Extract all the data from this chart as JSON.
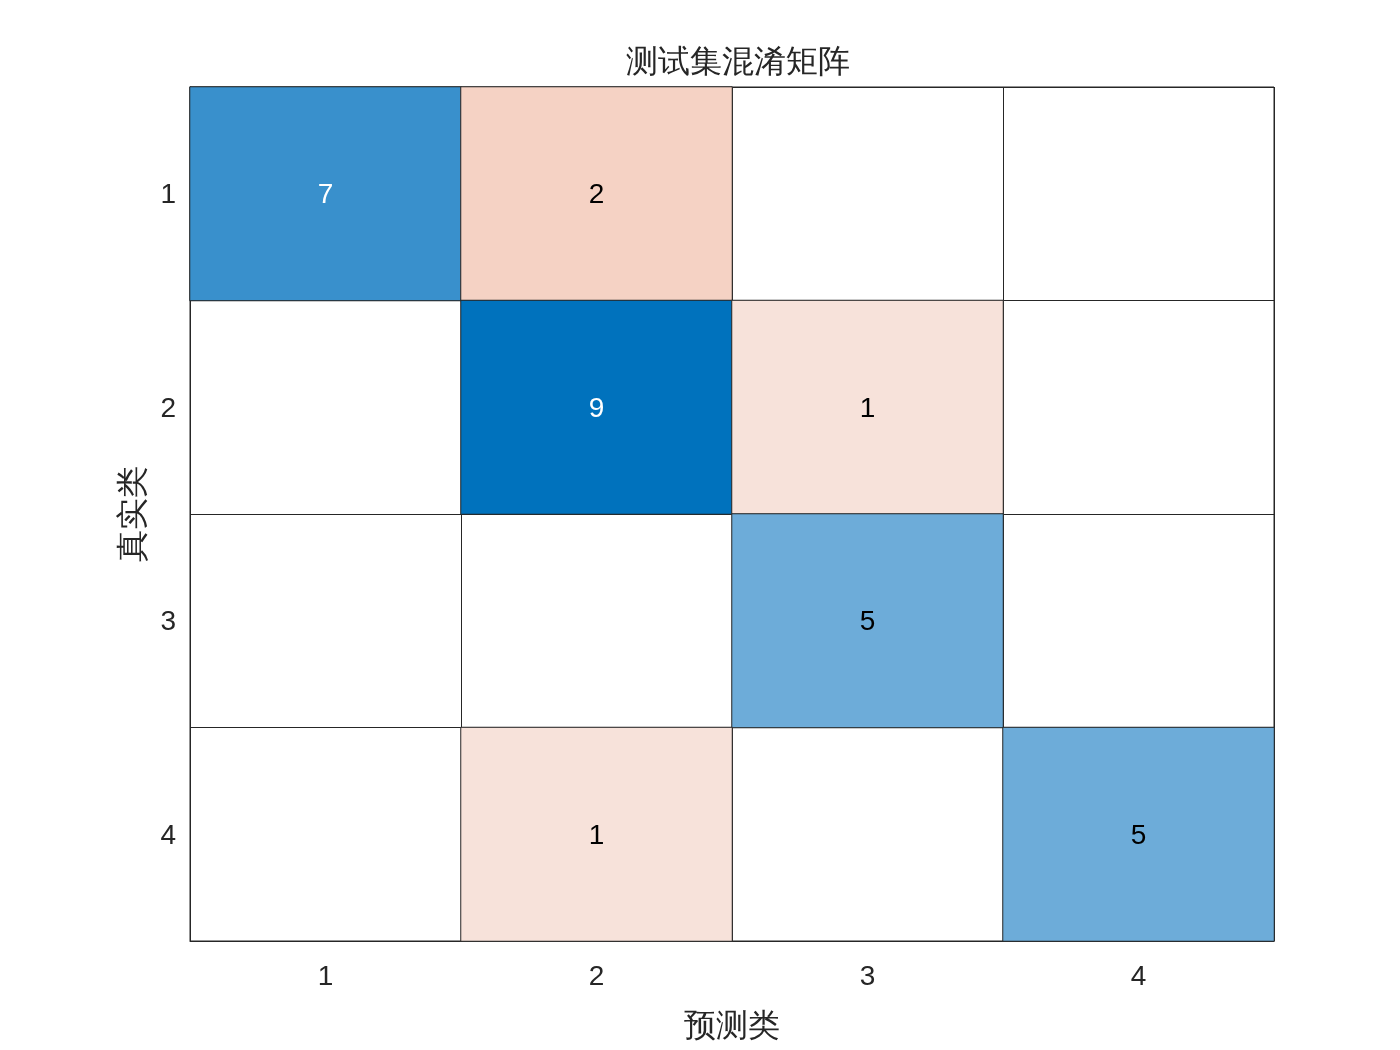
{
  "chart_data": {
    "type": "heatmap",
    "title": "测试集混淆矩阵",
    "xlabel": "预测类",
    "ylabel": "真实类",
    "categories": [
      "1",
      "2",
      "3",
      "4"
    ],
    "y_categories": [
      "1",
      "2",
      "3",
      "4"
    ],
    "cells": [
      [
        7,
        2,
        null,
        null
      ],
      [
        null,
        9,
        1,
        null
      ],
      [
        null,
        null,
        5,
        null
      ],
      [
        null,
        1,
        null,
        5
      ]
    ],
    "colors": [
      [
        "#3990cc",
        "#f5d2c4",
        null,
        null
      ],
      [
        null,
        "#0072bd",
        "#f7e2da",
        null
      ],
      [
        null,
        null,
        "#6dacd9",
        null
      ],
      [
        null,
        "#f7e2da",
        null,
        "#6dacd9"
      ]
    ],
    "data_labels": true
  }
}
